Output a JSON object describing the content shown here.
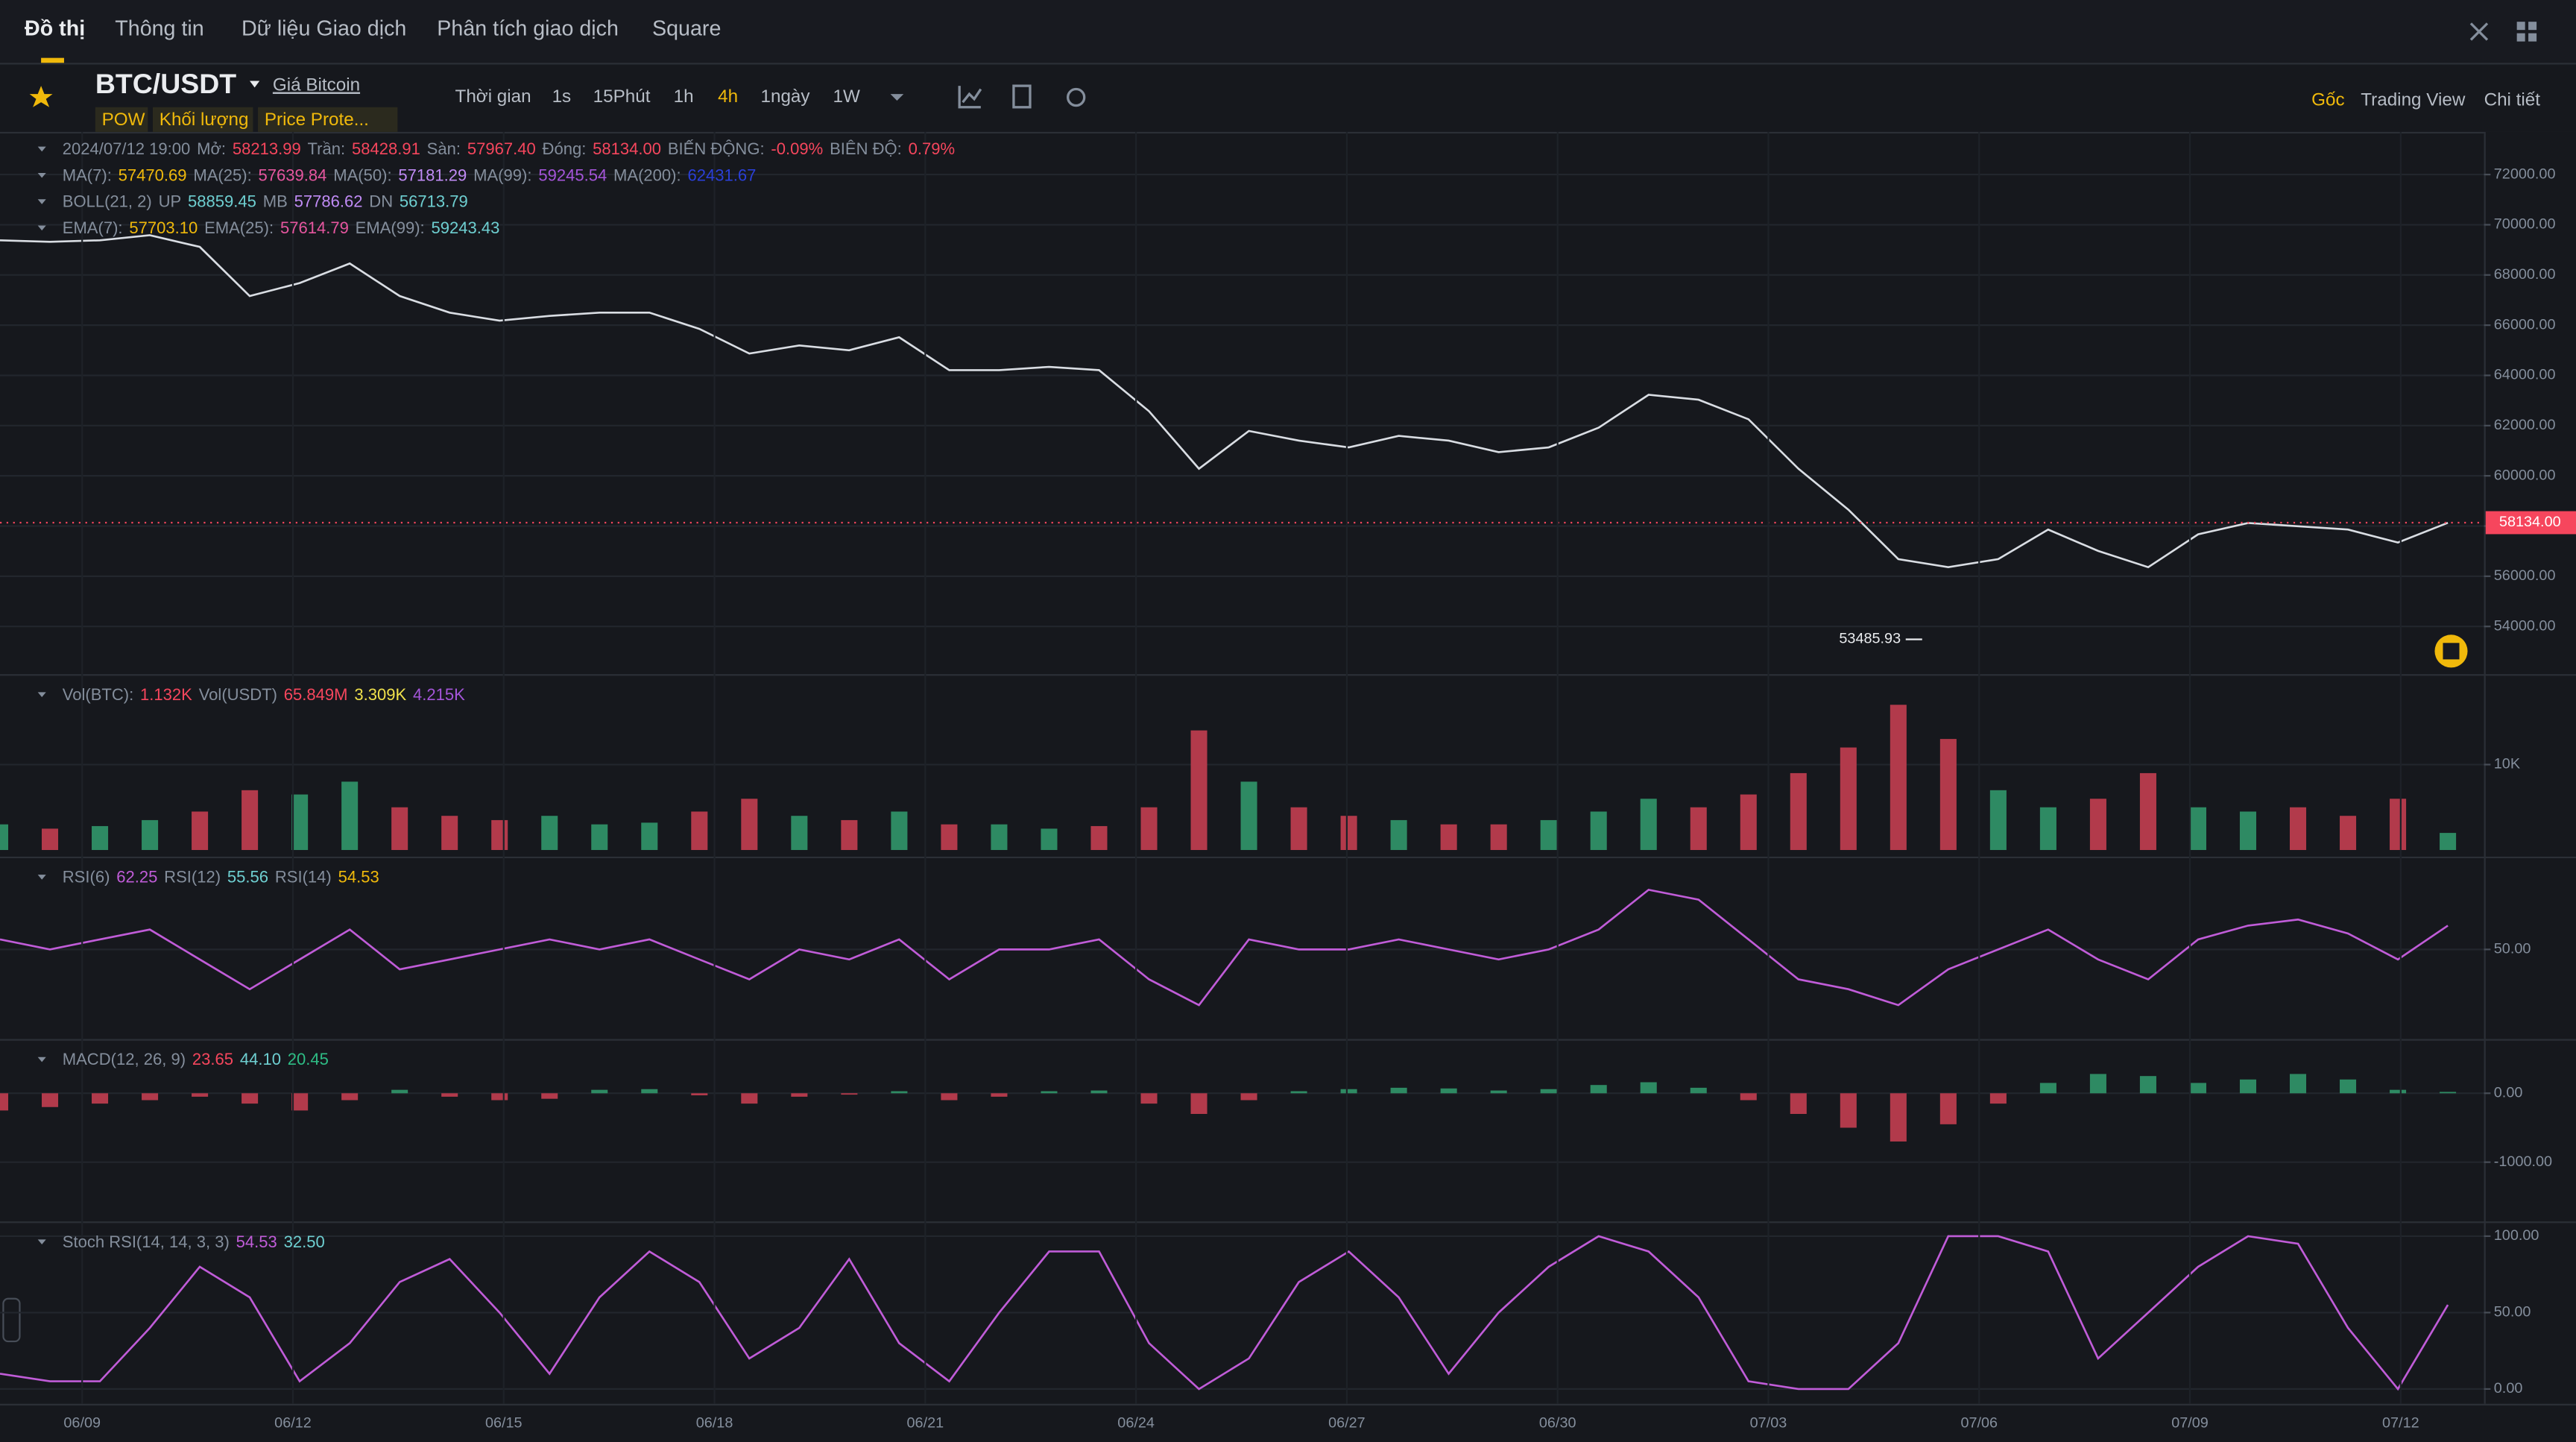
{
  "tabs": [
    "Đồ thị",
    "Thông tin",
    "Dữ liệu Giao dịch",
    "Phân tích giao dịch",
    "Square"
  ],
  "symbol": "BTC/USDT",
  "symbol_link": "Giá Bitcoin",
  "tags": [
    "POW",
    "Khối lượng",
    "Price Prote..."
  ],
  "intervals": [
    "Thời gian",
    "1s",
    "15Phút",
    "1h",
    "4h",
    "1ngày",
    "1W"
  ],
  "active_interval": "4h",
  "views": [
    "Gốc",
    "Trading View",
    "Chi tiết"
  ],
  "x_axis_labels": [
    "06/09",
    "06/12",
    "06/15",
    "06/18",
    "06/21",
    "06/24",
    "06/27",
    "06/30",
    "07/03",
    "07/06",
    "07/09",
    "07/12"
  ],
  "chart_data": [
    {
      "type": "line",
      "legend": [
        [
          {
            "text": "2024/07/12 19:00",
            "color": "#848e9c"
          },
          {
            "text": "Mở:",
            "color": "#848e9c"
          },
          {
            "text": "58213.99",
            "color": "#f6465d"
          },
          {
            "text": "Trần:",
            "color": "#848e9c"
          },
          {
            "text": "58428.91",
            "color": "#f6465d"
          },
          {
            "text": "Sàn:",
            "color": "#848e9c"
          },
          {
            "text": "57967.40",
            "color": "#f6465d"
          },
          {
            "text": "Đóng:",
            "color": "#848e9c"
          },
          {
            "text": "58134.00",
            "color": "#f6465d"
          },
          {
            "text": "BIẾN ĐỘNG:",
            "color": "#848e9c"
          },
          {
            "text": "-0.09%",
            "color": "#f6465d"
          },
          {
            "text": "BIÊN ĐỘ:",
            "color": "#848e9c"
          },
          {
            "text": "0.79%",
            "color": "#f6465d"
          }
        ],
        [
          {
            "text": "MA(7):",
            "color": "#848e9c"
          },
          {
            "text": "57470.69",
            "color": "#f0b90b"
          },
          {
            "text": "MA(25):",
            "color": "#848e9c"
          },
          {
            "text": "57639.84",
            "color": "#e6569f"
          },
          {
            "text": "MA(50):",
            "color": "#848e9c"
          },
          {
            "text": "57181.29",
            "color": "#c08bf5"
          },
          {
            "text": "MA(99):",
            "color": "#848e9c"
          },
          {
            "text": "59245.54",
            "color": "#a455d9"
          },
          {
            "text": "MA(200):",
            "color": "#848e9c"
          },
          {
            "text": "62431.67",
            "color": "#2a3fd8"
          }
        ],
        [
          {
            "text": "BOLL(21, 2)",
            "color": "#848e9c"
          },
          {
            "text": "UP",
            "color": "#848e9c"
          },
          {
            "text": "58859.45",
            "color": "#6ecfd1"
          },
          {
            "text": "MB",
            "color": "#848e9c"
          },
          {
            "text": "57786.62",
            "color": "#c08bf5"
          },
          {
            "text": "DN",
            "color": "#848e9c"
          },
          {
            "text": "56713.79",
            "color": "#6ecfd1"
          }
        ],
        [
          {
            "text": "EMA(7):",
            "color": "#848e9c"
          },
          {
            "text": "57703.10",
            "color": "#f0b90b"
          },
          {
            "text": "EMA(25):",
            "color": "#848e9c"
          },
          {
            "text": "57614.79",
            "color": "#e6569f"
          },
          {
            "text": "EMA(99):",
            "color": "#848e9c"
          },
          {
            "text": "59243.43",
            "color": "#6ecfd1"
          }
        ]
      ],
      "ylim": [
        52100,
        73700
      ],
      "yticks": [
        {
          "value": 54000,
          "label": "54000.00"
        },
        {
          "value": 56000,
          "label": "56000.00"
        },
        {
          "value": 58000,
          "label": "58000.00"
        },
        {
          "value": 60000,
          "label": "60000.00"
        },
        {
          "value": 62000,
          "label": "62000.00"
        },
        {
          "value": 64000,
          "label": "64000.00"
        },
        {
          "value": 66000,
          "label": "66000.00"
        },
        {
          "value": 68000,
          "label": "68000.00"
        },
        {
          "value": 70000,
          "label": "70000.00"
        },
        {
          "value": 72000,
          "label": "72000.00"
        }
      ],
      "price_tag": {
        "value": 58134,
        "label": "58134.00"
      },
      "low_label": {
        "value": 53485.93,
        "label": "53485.93"
      },
      "series": [
        {
          "color": "#d9dde3",
          "values": [
            69380,
            69320,
            69380,
            69580,
            69120,
            67160,
            67680,
            68460,
            67160,
            66500,
            66180,
            66370,
            66500,
            66500,
            65850,
            64870,
            65190,
            65000,
            65520,
            64210,
            64210,
            64340,
            64210,
            62570,
            60280,
            61790,
            61400,
            61130,
            61590,
            61400,
            60940,
            61130,
            61920,
            63230,
            63030,
            62250,
            60280,
            58650,
            56680,
            56360,
            56680,
            57860,
            57010,
            56360,
            57670,
            58120,
            57990,
            57860,
            57340,
            58130
          ]
        }
      ]
    },
    {
      "type": "bar",
      "legend": [
        [
          {
            "text": "Vol(BTC):",
            "color": "#848e9c"
          },
          {
            "text": "1.132K",
            "color": "#f6465d"
          },
          {
            "text": "Vol(USDT)",
            "color": "#848e9c"
          },
          {
            "text": "65.849M",
            "color": "#f6465d"
          },
          {
            "text": "3.309K",
            "color": "#f0e14b"
          },
          {
            "text": "4.215K",
            "color": "#a455d9"
          }
        ]
      ],
      "ylim": [
        0,
        20200
      ],
      "yticks": [
        {
          "value": 10000,
          "label": "10K"
        }
      ],
      "color_by": "price_change",
      "up_color": "#2e8a63",
      "down_color": "#b23a4b",
      "series": [
        {
          "values": [
            3000,
            2500,
            2800,
            3500,
            4500,
            7000,
            6500,
            8000,
            5000,
            4000,
            3500,
            4000,
            3000,
            3200,
            4500,
            6000,
            4000,
            3500,
            4500,
            3000,
            3000,
            2500,
            2800,
            5000,
            14000,
            8000,
            5000,
            4000,
            3500,
            3000,
            3000,
            3500,
            4500,
            6000,
            5000,
            6500,
            9000,
            12000,
            17000,
            13000,
            7000,
            5000,
            6000,
            9000,
            5000,
            4500,
            5000,
            4000,
            6000,
            2000
          ]
        }
      ]
    },
    {
      "type": "line",
      "legend": [
        [
          {
            "text": "RSI(6)",
            "color": "#848e9c"
          },
          {
            "text": "62.25",
            "color": "#c05cd8"
          },
          {
            "text": "RSI(12)",
            "color": "#848e9c"
          },
          {
            "text": "55.56",
            "color": "#6ecfd1"
          },
          {
            "text": "RSI(14)",
            "color": "#848e9c"
          },
          {
            "text": "54.53",
            "color": "#f0b90b"
          }
        ]
      ],
      "ylim": [
        5,
        95
      ],
      "yticks": [
        {
          "value": 50,
          "label": "50.00"
        }
      ],
      "series": [
        {
          "color": "#c05cd8",
          "values": [
            55,
            50,
            55,
            60,
            45,
            30,
            45,
            60,
            40,
            45,
            50,
            55,
            50,
            55,
            45,
            35,
            50,
            45,
            55,
            35,
            50,
            50,
            55,
            35,
            22,
            55,
            50,
            50,
            55,
            50,
            45,
            50,
            60,
            80,
            75,
            55,
            35,
            30,
            22,
            40,
            50,
            60,
            45,
            35,
            55,
            62,
            65,
            58,
            45,
            62
          ]
        }
      ]
    },
    {
      "type": "bar",
      "legend": [
        [
          {
            "text": "MACD(12, 26, 9)",
            "color": "#848e9c"
          },
          {
            "text": "23.65",
            "color": "#f6465d"
          },
          {
            "text": "44.10",
            "color": "#6ecfd1"
          },
          {
            "text": "20.45",
            "color": "#2ebd85"
          }
        ]
      ],
      "ylim": [
        -1860,
        740
      ],
      "yticks": [
        {
          "value": -1000,
          "label": "-1000.00"
        },
        {
          "value": 0,
          "label": "0.00"
        }
      ],
      "color_by": "sign",
      "up_color": "#2e8a63",
      "down_color": "#b23a4b",
      "series": [
        {
          "values": [
            -250,
            -200,
            -150,
            -100,
            -50,
            -150,
            -250,
            -100,
            50,
            -50,
            -100,
            -80,
            50,
            60,
            -30,
            -150,
            -50,
            -20,
            30,
            -100,
            -50,
            30,
            40,
            -150,
            -300,
            -100,
            30,
            60,
            80,
            70,
            40,
            60,
            120,
            160,
            80,
            -100,
            -300,
            -500,
            -700,
            -450,
            -150,
            150,
            280,
            250,
            150,
            200,
            280,
            200,
            50,
            20
          ]
        }
      ]
    },
    {
      "type": "line",
      "legend": [
        [
          {
            "text": "Stoch RSI(14, 14, 3, 3)",
            "color": "#848e9c"
          },
          {
            "text": "54.53",
            "color": "#c05cd8"
          },
          {
            "text": "32.50",
            "color": "#6ecfd1"
          }
        ]
      ],
      "ylim": [
        -9.7,
        107.5
      ],
      "yticks": [
        {
          "value": 0,
          "label": "0.00"
        },
        {
          "value": 50,
          "label": "50.00"
        },
        {
          "value": 100,
          "label": "100.00"
        }
      ],
      "series": [
        {
          "color": "#c05cd8",
          "values": [
            10,
            5,
            5,
            40,
            80,
            60,
            5,
            30,
            70,
            85,
            50,
            10,
            60,
            90,
            70,
            20,
            40,
            85,
            30,
            5,
            50,
            90,
            90,
            30,
            0,
            20,
            70,
            90,
            60,
            10,
            50,
            80,
            100,
            90,
            60,
            5,
            0,
            0,
            30,
            100,
            100,
            90,
            20,
            50,
            80,
            100,
            95,
            40,
            0,
            55
          ]
        }
      ]
    }
  ]
}
